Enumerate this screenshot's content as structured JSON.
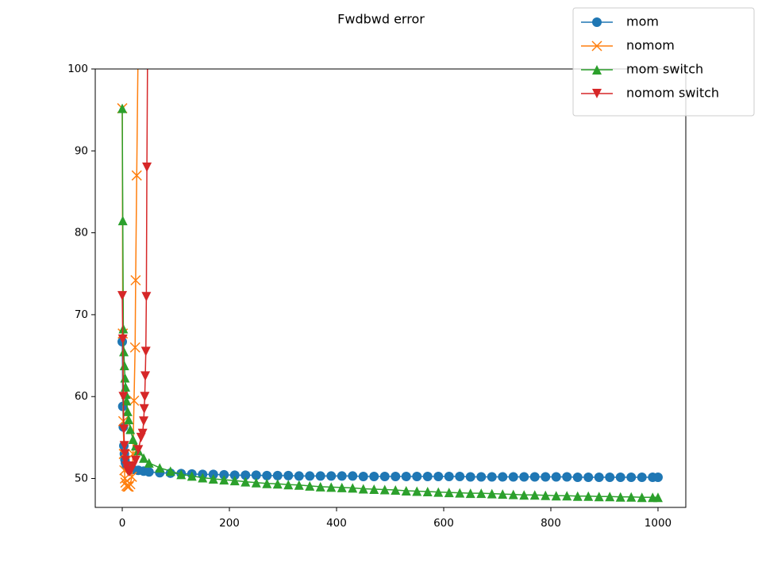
{
  "chart_data": {
    "type": "line",
    "title": "Fwdbwd error",
    "xlim": [
      -50.4,
      1051.9
    ],
    "ylim": [
      46.47,
      100
    ],
    "xticks": [
      0,
      200,
      400,
      600,
      800,
      1000
    ],
    "yticks": [
      50,
      60,
      70,
      80,
      90,
      100
    ],
    "grid": false,
    "legend": "upper right",
    "series": [
      {
        "name": "mom",
        "color": "#1f77b4",
        "marker": "circle",
        "x": [
          0,
          1,
          2,
          3,
          4,
          5,
          6,
          8,
          10,
          15,
          20,
          30,
          40,
          50,
          70,
          90,
          110,
          130,
          150,
          170,
          190,
          210,
          230,
          250,
          270,
          290,
          310,
          330,
          350,
          370,
          390,
          410,
          430,
          450,
          470,
          490,
          510,
          530,
          550,
          570,
          590,
          610,
          630,
          650,
          670,
          690,
          710,
          730,
          750,
          770,
          790,
          810,
          830,
          850,
          870,
          890,
          910,
          930,
          950,
          970,
          990,
          1000
        ],
        "values": [
          66.7,
          58.8,
          56.3,
          54.0,
          53.0,
          52.3,
          51.9,
          51.5,
          51.3,
          51.2,
          51.1,
          51.0,
          50.9,
          50.8,
          50.7,
          50.65,
          50.6,
          50.55,
          50.5,
          50.5,
          50.45,
          50.4,
          50.4,
          50.4,
          50.35,
          50.35,
          50.35,
          50.3,
          50.3,
          50.3,
          50.3,
          50.3,
          50.3,
          50.25,
          50.25,
          50.25,
          50.25,
          50.25,
          50.25,
          50.25,
          50.25,
          50.25,
          50.25,
          50.2,
          50.2,
          50.2,
          50.2,
          50.2,
          50.2,
          50.2,
          50.2,
          50.2,
          50.2,
          50.15,
          50.15,
          50.15,
          50.15,
          50.15,
          50.15,
          50.15,
          50.15,
          50.15
        ]
      },
      {
        "name": "nomom",
        "color": "#ff7f0e",
        "marker": "x",
        "x": [
          0,
          1,
          2,
          3,
          4,
          5,
          6,
          8,
          10,
          12,
          15,
          18,
          20,
          22,
          24,
          25,
          27,
          30
        ],
        "values": [
          95.2,
          67.7,
          57.0,
          53.0,
          51.0,
          50.0,
          49.5,
          49.1,
          49.0,
          49.0,
          49.3,
          50.2,
          53.0,
          59.5,
          66.0,
          74.2,
          87.0,
          105.0
        ]
      },
      {
        "name": "mom switch",
        "color": "#2ca02c",
        "marker": "triangle-up",
        "x": [
          0,
          1,
          2,
          3,
          4,
          5,
          6,
          7,
          8,
          10,
          12,
          15,
          20,
          25,
          30,
          40,
          50,
          70,
          90,
          110,
          130,
          150,
          170,
          190,
          210,
          230,
          250,
          270,
          290,
          310,
          330,
          350,
          370,
          390,
          410,
          430,
          450,
          470,
          490,
          510,
          530,
          550,
          570,
          590,
          610,
          630,
          650,
          670,
          690,
          710,
          730,
          750,
          770,
          790,
          810,
          830,
          850,
          870,
          890,
          910,
          930,
          950,
          970,
          990,
          1000
        ],
        "values": [
          95.2,
          81.5,
          68.3,
          65.5,
          63.8,
          62.3,
          61.2,
          60.3,
          59.5,
          58.2,
          57.2,
          56.0,
          54.8,
          54.0,
          53.4,
          52.5,
          51.9,
          51.3,
          50.9,
          50.5,
          50.3,
          50.1,
          49.95,
          49.85,
          49.75,
          49.6,
          49.5,
          49.4,
          49.35,
          49.25,
          49.2,
          49.1,
          49.0,
          48.95,
          48.9,
          48.85,
          48.75,
          48.7,
          48.65,
          48.6,
          48.5,
          48.45,
          48.4,
          48.35,
          48.3,
          48.25,
          48.2,
          48.2,
          48.15,
          48.1,
          48.05,
          48.0,
          48.0,
          47.95,
          47.9,
          47.9,
          47.85,
          47.85,
          47.8,
          47.8,
          47.75,
          47.75,
          47.7,
          47.7,
          47.7
        ]
      },
      {
        "name": "nomom switch",
        "color": "#d62728",
        "marker": "triangle-down",
        "x": [
          0,
          1,
          2,
          3,
          4,
          5,
          6,
          8,
          10,
          13,
          16,
          20,
          25,
          30,
          35,
          38,
          40,
          41,
          42,
          43,
          44,
          45,
          46,
          48
        ],
        "values": [
          72.3,
          67.0,
          60.0,
          56.0,
          54.0,
          53.0,
          52.2,
          51.5,
          51.0,
          50.8,
          51.0,
          51.5,
          52.2,
          53.5,
          55.0,
          55.5,
          57.0,
          58.5,
          60.0,
          62.5,
          65.5,
          72.2,
          88.0,
          110.0
        ]
      }
    ]
  }
}
